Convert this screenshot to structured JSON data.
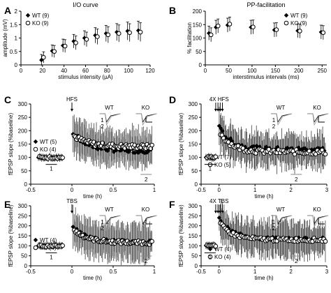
{
  "chart_data": [
    {
      "panel": "A",
      "type": "line",
      "title": "I/O curve",
      "xlabel": "stimulus intensity (µA)",
      "ylabel": "amplitude (mV)",
      "xlim": [
        0,
        120
      ],
      "ylim": [
        0,
        2
      ],
      "xticks": [
        0,
        20,
        40,
        60,
        80,
        100,
        120
      ],
      "yticks": [
        0,
        0.5,
        1,
        1.5,
        2
      ],
      "legend_position": "top-left",
      "x": [
        20,
        30,
        40,
        50,
        60,
        70,
        80,
        90,
        100,
        110
      ],
      "series": [
        {
          "name": "WT (9)",
          "marker": "filled-diamond",
          "values": [
            0.18,
            0.52,
            0.72,
            0.88,
            1.0,
            1.1,
            1.17,
            1.22,
            1.26,
            1.28
          ]
        },
        {
          "name": "KO (9)",
          "marker": "open-circle",
          "values": [
            0.28,
            0.5,
            0.7,
            0.82,
            0.95,
            1.05,
            1.12,
            1.17,
            1.2,
            1.22
          ]
        }
      ]
    },
    {
      "panel": "B",
      "type": "line",
      "title": "PP-facilitation",
      "xlabel": "interstimulus intervals (ms)",
      "ylabel": "% facilitation",
      "xlim": [
        0,
        260
      ],
      "ylim": [
        0,
        200
      ],
      "xticks": [
        0,
        50,
        100,
        150,
        200,
        250
      ],
      "yticks": [
        0,
        50,
        100,
        150,
        200
      ],
      "legend_position": "top-right",
      "x": [
        10,
        25,
        50,
        100,
        150,
        200,
        250
      ],
      "series": [
        {
          "name": "WT (9)",
          "marker": "filled-diamond",
          "values": [
            118,
            140,
            148,
            140,
            130,
            127,
            122
          ]
        },
        {
          "name": "KO (9)",
          "marker": "open-circle",
          "values": [
            112,
            145,
            152,
            141,
            131,
            126,
            120
          ]
        }
      ]
    },
    {
      "panel": "C",
      "type": "scatter",
      "xlabel": "time (h)",
      "ylabel": "fEPSP slope (%baseline)",
      "xlim": [
        -0.5,
        1
      ],
      "ylim": [
        0,
        300
      ],
      "xticks": [
        -0.5,
        0,
        0.5,
        1
      ],
      "yticks": [
        0,
        50,
        100,
        150,
        200,
        250,
        300
      ],
      "legend_position": "left",
      "stimulus_label": "HFS",
      "stimulus_time": 0,
      "stimulus_arrows": 1,
      "baseline_marker": "1",
      "late_marker": "2",
      "trace_labels": [
        "WT",
        "KO"
      ],
      "series": [
        {
          "name": "WT (5)",
          "marker": "filled-diamond",
          "baseline": 100,
          "peak": 200,
          "end": 125
        },
        {
          "name": "KO (4)",
          "marker": "open-circle",
          "baseline": 100,
          "peak": 185,
          "end": 140
        }
      ]
    },
    {
      "panel": "D",
      "type": "scatter",
      "xlabel": "time (h)",
      "ylabel": "fEPSP slope (%baseline)",
      "xlim": [
        -0.5,
        3
      ],
      "ylim": [
        0,
        300
      ],
      "xticks": [
        -0.5,
        0,
        1,
        2,
        3
      ],
      "yticks": [
        0,
        50,
        100,
        150,
        200,
        250,
        300
      ],
      "legend_position": "bottom-left",
      "stimulus_label": "4X HFS",
      "stimulus_time": 0,
      "stimulus_arrows": 4,
      "baseline_marker": "1",
      "late_marker": "2",
      "trace_labels": [
        "WT",
        "KO"
      ],
      "series": [
        {
          "name": "WT (7)",
          "marker": "filled-diamond",
          "baseline": 100,
          "peak": 215,
          "end": 130
        },
        {
          "name": "KO (5)",
          "marker": "open-circle",
          "baseline": 100,
          "peak": 195,
          "end": 120
        }
      ]
    },
    {
      "panel": "E",
      "type": "scatter",
      "xlabel": "time (h)",
      "ylabel": "fEPSP slope (%baseline)",
      "xlim": [
        -0.5,
        1
      ],
      "ylim": [
        0,
        300
      ],
      "xticks": [
        -0.5,
        0,
        0.5,
        1
      ],
      "yticks": [
        0,
        50,
        100,
        150,
        200,
        250,
        300
      ],
      "legend_position": "left",
      "stimulus_label": "TBS",
      "stimulus_time": 0,
      "stimulus_arrows": 1,
      "baseline_marker": "1",
      "late_marker": "2",
      "trace_labels": [
        "WT",
        "KO"
      ],
      "series": [
        {
          "name": "WT (4)",
          "marker": "filled-diamond",
          "baseline": 100,
          "peak": 200,
          "end": 118
        },
        {
          "name": "KO (4)",
          "marker": "open-circle",
          "baseline": 100,
          "peak": 185,
          "end": 115
        }
      ]
    },
    {
      "panel": "F",
      "type": "scatter",
      "xlabel": "time (h)",
      "ylabel": "fEPSP slope (%baseline)",
      "xlim": [
        -0.5,
        3
      ],
      "ylim": [
        0,
        300
      ],
      "xticks": [
        -0.5,
        0,
        1,
        2,
        3
      ],
      "yticks": [
        0,
        50,
        100,
        150,
        200,
        250,
        300
      ],
      "legend_position": "bottom-left",
      "stimulus_label": "4X TBS",
      "stimulus_time": 0,
      "stimulus_arrows": 4,
      "baseline_marker": "1",
      "late_marker": "2",
      "trace_labels": [
        "WT",
        "KO"
      ],
      "series": [
        {
          "name": "WT (4)",
          "marker": "filled-diamond",
          "baseline": 100,
          "peak": 240,
          "end": 135
        },
        {
          "name": "KO (4)",
          "marker": "open-circle",
          "baseline": 100,
          "peak": 215,
          "end": 130
        }
      ]
    }
  ]
}
